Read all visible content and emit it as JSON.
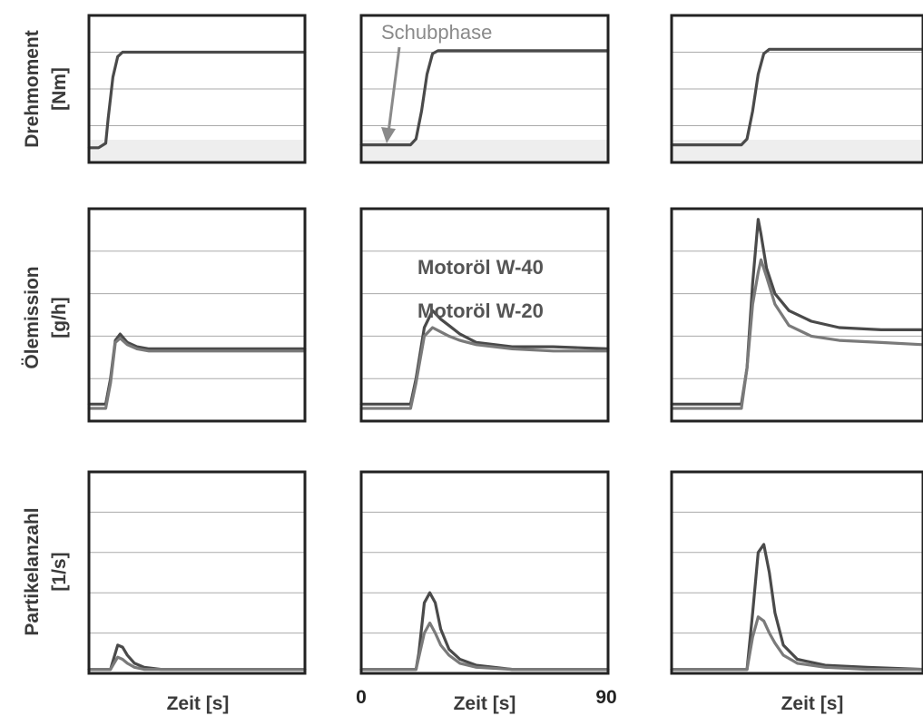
{
  "colors": {
    "frame": "#222222",
    "grid": "#aaaaaa",
    "band": "#eeeeee",
    "series_w40": "#4a4a4a",
    "series_w20": "#7a7a7a",
    "annotation": "#8a8a8a"
  },
  "chart_data": [
    {
      "type": "line",
      "row": "Drehmoment",
      "column": 1,
      "ylabel": "Drehmoment [Nm]",
      "xlabel": "",
      "xlim": [
        0,
        90
      ],
      "ylim": [
        0,
        100
      ],
      "grid": true,
      "series": [
        {
          "x": [
            0,
            4,
            7,
            8,
            10,
            12,
            14,
            18,
            30,
            45,
            60,
            75,
            90
          ],
          "y": [
            10,
            10,
            13,
            30,
            58,
            72,
            75,
            75,
            75,
            75,
            75,
            75,
            75
          ]
        }
      ]
    },
    {
      "type": "line",
      "row": "Drehmoment",
      "column": 2,
      "xlabel": "",
      "xlim": [
        0,
        90
      ],
      "ylim": [
        0,
        100
      ],
      "grid": true,
      "annotation": {
        "text": "Schubphase",
        "target": [
          12,
          12
        ]
      },
      "series": [
        {
          "x": [
            0,
            18,
            20,
            22,
            24,
            26,
            28,
            32,
            45,
            60,
            75,
            90
          ],
          "y": [
            12,
            12,
            16,
            35,
            60,
            74,
            76,
            76,
            76,
            76,
            76,
            76
          ]
        }
      ]
    },
    {
      "type": "line",
      "row": "Drehmoment",
      "column": 3,
      "xlabel": "",
      "xlim": [
        0,
        90
      ],
      "ylim": [
        0,
        100
      ],
      "grid": true,
      "series": [
        {
          "x": [
            0,
            25,
            27,
            29,
            31,
            33,
            35,
            40,
            55,
            70,
            90
          ],
          "y": [
            12,
            12,
            16,
            35,
            60,
            74,
            77,
            77,
            77,
            77,
            77
          ]
        }
      ]
    },
    {
      "type": "line",
      "row": "Ölemission",
      "column": 1,
      "ylabel": "Ölemission [g/h]",
      "xlabel": "",
      "xlim": [
        0,
        90
      ],
      "ylim": [
        0,
        100
      ],
      "grid": true,
      "series": [
        {
          "name": "Motoröl W-40",
          "x": [
            0,
            7,
            9,
            11,
            13,
            16,
            20,
            25,
            40,
            60,
            75,
            90
          ],
          "y": [
            8,
            8,
            20,
            38,
            41,
            37,
            35,
            34,
            34,
            34,
            34,
            34
          ]
        },
        {
          "name": "Motoröl W-20",
          "x": [
            0,
            7,
            9,
            11,
            13,
            16,
            20,
            25,
            40,
            60,
            75,
            90
          ],
          "y": [
            6,
            6,
            18,
            37,
            39,
            36,
            34,
            33,
            33,
            33,
            33,
            33
          ]
        }
      ]
    },
    {
      "type": "line",
      "row": "Ölemission",
      "column": 2,
      "xlabel": "",
      "xlim": [
        0,
        90
      ],
      "ylim": [
        0,
        100
      ],
      "grid": true,
      "legend": [
        "Motoröl W-40",
        "Motoröl W-20"
      ],
      "series": [
        {
          "name": "Motoröl W-40",
          "x": [
            0,
            18,
            20,
            23,
            26,
            29,
            32,
            36,
            42,
            55,
            70,
            90
          ],
          "y": [
            8,
            8,
            20,
            44,
            52,
            48,
            45,
            41,
            37,
            35,
            35,
            34
          ]
        },
        {
          "name": "Motoröl W-20",
          "x": [
            0,
            18,
            20,
            23,
            26,
            29,
            32,
            36,
            42,
            55,
            70,
            90
          ],
          "y": [
            6,
            6,
            18,
            40,
            44,
            42,
            40,
            38,
            36,
            34,
            33,
            33
          ]
        }
      ]
    },
    {
      "type": "line",
      "row": "Ölemission",
      "column": 3,
      "xlabel": "",
      "xlim": [
        0,
        90
      ],
      "ylim": [
        0,
        100
      ],
      "grid": true,
      "series": [
        {
          "name": "Motoröl W-40",
          "x": [
            0,
            25,
            27,
            29,
            31,
            32,
            34,
            37,
            42,
            50,
            60,
            75,
            90
          ],
          "y": [
            8,
            8,
            25,
            65,
            95,
            88,
            72,
            60,
            52,
            47,
            44,
            43,
            43
          ]
        },
        {
          "name": "Motoröl W-20",
          "x": [
            0,
            25,
            27,
            29,
            31,
            32,
            34,
            37,
            42,
            50,
            60,
            75,
            90
          ],
          "y": [
            6,
            6,
            25,
            55,
            70,
            76,
            68,
            55,
            45,
            40,
            38,
            37,
            36
          ]
        }
      ]
    },
    {
      "type": "line",
      "row": "Partikelanzahl",
      "column": 1,
      "ylabel": "Partikelanzahl [1/s]",
      "xlabel": "Zeit [s]",
      "xlim": [
        0,
        90
      ],
      "ylim": [
        0,
        100
      ],
      "grid": true,
      "series": [
        {
          "name": "Motoröl W-40",
          "x": [
            0,
            9,
            10,
            12,
            14,
            16,
            19,
            23,
            30,
            45,
            60,
            90
          ],
          "y": [
            2,
            2,
            6,
            14,
            13,
            9,
            5,
            3,
            2,
            2,
            2,
            2
          ]
        },
        {
          "name": "Motoröl W-20",
          "x": [
            0,
            9,
            10,
            12,
            14,
            16,
            19,
            23,
            30,
            45,
            60,
            90
          ],
          "y": [
            2,
            2,
            4,
            8,
            7,
            5,
            3,
            2,
            2,
            2,
            2,
            2
          ]
        }
      ]
    },
    {
      "type": "line",
      "row": "Partikelanzahl",
      "column": 2,
      "xlabel": "Zeit [s]",
      "xlim": [
        0,
        90
      ],
      "ylim": [
        0,
        100
      ],
      "xticks": [
        "0",
        "90"
      ],
      "grid": true,
      "series": [
        {
          "name": "Motoröl W-40",
          "x": [
            0,
            20,
            21,
            23,
            25,
            27,
            29,
            32,
            36,
            42,
            55,
            70,
            90
          ],
          "y": [
            2,
            2,
            10,
            35,
            40,
            35,
            22,
            12,
            7,
            4,
            2,
            2,
            2
          ]
        },
        {
          "name": "Motoröl W-20",
          "x": [
            0,
            20,
            21,
            23,
            25,
            27,
            29,
            32,
            36,
            42,
            55,
            70,
            90
          ],
          "y": [
            2,
            2,
            8,
            20,
            25,
            20,
            14,
            9,
            5,
            3,
            2,
            2,
            2
          ]
        }
      ]
    },
    {
      "type": "line",
      "row": "Partikelanzahl",
      "column": 3,
      "xlabel": "Zeit [s]",
      "xlim": [
        0,
        90
      ],
      "ylim": [
        0,
        100
      ],
      "grid": true,
      "series": [
        {
          "name": "Motoröl W-40",
          "x": [
            0,
            27,
            29,
            31,
            33,
            35,
            37,
            40,
            45,
            55,
            70,
            90
          ],
          "y": [
            2,
            2,
            30,
            60,
            64,
            50,
            30,
            14,
            7,
            4,
            3,
            2
          ]
        },
        {
          "name": "Motoröl W-20",
          "x": [
            0,
            27,
            29,
            31,
            33,
            35,
            37,
            40,
            45,
            55,
            70,
            90
          ],
          "y": [
            2,
            2,
            18,
            28,
            26,
            20,
            15,
            9,
            5,
            3,
            2,
            2
          ]
        }
      ]
    }
  ],
  "labels": {
    "row1": [
      "Drehmoment",
      "[Nm]"
    ],
    "row2": [
      "Ölemission",
      "[g/h]"
    ],
    "row3": [
      "Partikelanzahl",
      "[1/s]"
    ],
    "x_label": "Zeit [s]",
    "x_tick_min": "0",
    "x_tick_max": "90",
    "annotation": "Schubphase",
    "legend_w40": "Motoröl W-40",
    "legend_w20": "Motoröl W-20"
  }
}
